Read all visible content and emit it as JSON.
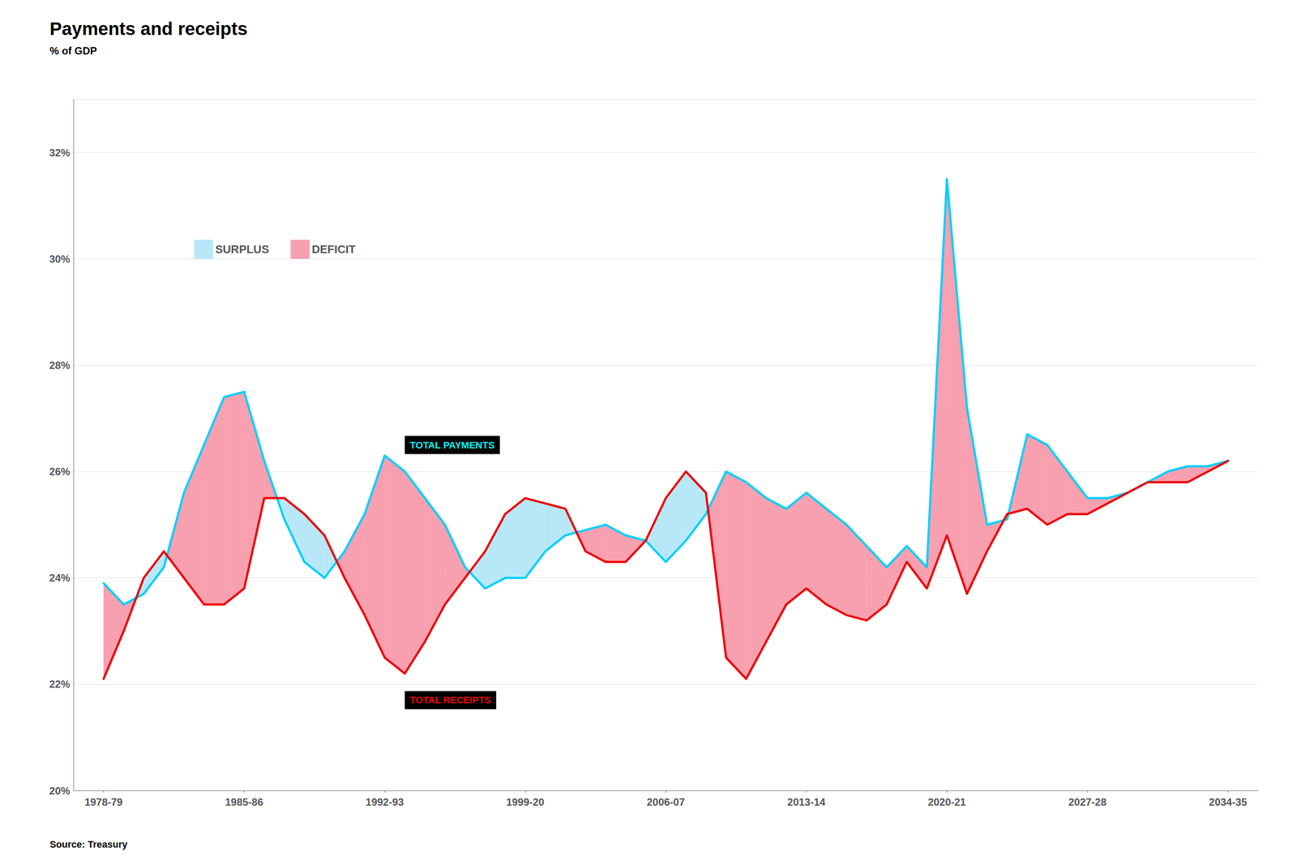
{
  "chart_data": {
    "type": "line",
    "title": "Payments and receipts",
    "subtitle": "% of GDP",
    "source": "Source: Treasury",
    "x": [
      1978.5,
      1979.5,
      1980.5,
      1981.5,
      1982.5,
      1983.5,
      1984.5,
      1985.5,
      1986.5,
      1987.5,
      1988.5,
      1989.5,
      1990.5,
      1991.5,
      1992.5,
      1993.5,
      1994.5,
      1995.5,
      1996.5,
      1997.5,
      1998.5,
      1999.5,
      2000.5,
      2001.5,
      2002.5,
      2003.5,
      2004.5,
      2005.5,
      2006.5,
      2007.5,
      2008.5,
      2009.5,
      2010.5,
      2011.5,
      2012.5,
      2013.5,
      2014.5,
      2015.5,
      2016.5,
      2017.5,
      2018.5,
      2019.5,
      2020.5,
      2021.5,
      2022.5,
      2023.5,
      2024.5,
      2025.5,
      2026.5,
      2027.5,
      2028.5,
      2029.5,
      2030.5,
      2031.5,
      2032.5,
      2033.5,
      2034.5
    ],
    "series": [
      {
        "name": "TOTAL PAYMENTS",
        "color": "#00CFFF",
        "values": [
          23.9,
          23.5,
          23.7,
          24.2,
          25.6,
          26.5,
          27.4,
          27.5,
          26.2,
          25.1,
          24.3,
          24.0,
          24.5,
          25.2,
          26.3,
          26.0,
          25.5,
          25.0,
          24.2,
          23.8,
          24.0,
          24.0,
          24.5,
          24.8,
          24.9,
          25.0,
          24.8,
          24.7,
          24.3,
          24.7,
          25.2,
          26.0,
          25.8,
          25.5,
          25.3,
          25.6,
          25.3,
          25.0,
          24.6,
          24.2,
          24.6,
          24.2,
          31.5,
          27.2,
          25.0,
          25.1,
          26.7,
          26.5,
          26.0,
          25.5,
          25.5,
          25.6,
          25.8,
          26.0,
          26.1,
          26.1,
          26.2
        ]
      },
      {
        "name": "TOTAL RECEIPTS",
        "color": "#EE0000",
        "values": [
          22.1,
          23.0,
          24.0,
          24.5,
          24.0,
          23.5,
          23.5,
          23.8,
          25.5,
          25.5,
          25.2,
          24.8,
          24.0,
          23.3,
          22.5,
          22.2,
          22.8,
          23.5,
          24.0,
          24.5,
          25.2,
          25.5,
          25.4,
          25.3,
          24.5,
          24.3,
          24.3,
          24.7,
          25.5,
          26.0,
          25.6,
          22.5,
          22.1,
          22.8,
          23.5,
          23.8,
          23.5,
          23.3,
          23.2,
          23.5,
          24.3,
          23.8,
          24.8,
          23.7,
          24.5,
          25.2,
          25.3,
          25.0,
          25.2,
          25.2,
          25.4,
          25.6,
          25.8,
          25.8,
          25.8,
          26.0,
          26.2
        ]
      }
    ],
    "fills": [
      {
        "name": "SURPLUS",
        "color": "#B8E8F8",
        "above": "TOTAL RECEIPTS"
      },
      {
        "name": "DEFICIT",
        "color": "#F8A0B0",
        "above": "TOTAL PAYMENTS"
      }
    ],
    "annotations": [
      {
        "text": "TOTAL PAYMENTS",
        "x": 1993.5,
        "y": 26.5,
        "color": "cyan"
      },
      {
        "text": "TOTAL RECEIPTS",
        "x": 1993.5,
        "y": 21.7,
        "color": "red"
      }
    ],
    "xlim": [
      1977.0,
      2036.0
    ],
    "xticks": [
      {
        "value": 1978.5,
        "label": "1978-79"
      },
      {
        "value": 1985.5,
        "label": "1985-86"
      },
      {
        "value": 1992.5,
        "label": "1992-93"
      },
      {
        "value": 1999.5,
        "label": "1999-20"
      },
      {
        "value": 2006.5,
        "label": "2006-07"
      },
      {
        "value": 2013.5,
        "label": "2013-14"
      },
      {
        "value": 2020.5,
        "label": "2020-21"
      },
      {
        "value": 2027.5,
        "label": "2027-28"
      },
      {
        "value": 2034.5,
        "label": "2034-35"
      }
    ],
    "ylim": [
      20,
      33
    ],
    "yticks": [
      {
        "value": 20,
        "label": "20%"
      },
      {
        "value": 22,
        "label": "22%"
      },
      {
        "value": 24,
        "label": "24%"
      },
      {
        "value": 26,
        "label": "26%"
      },
      {
        "value": 28,
        "label": "28%"
      },
      {
        "value": 30,
        "label": "30%"
      },
      {
        "value": 32,
        "label": "32%"
      }
    ],
    "grid": true,
    "legend": "upper left"
  }
}
